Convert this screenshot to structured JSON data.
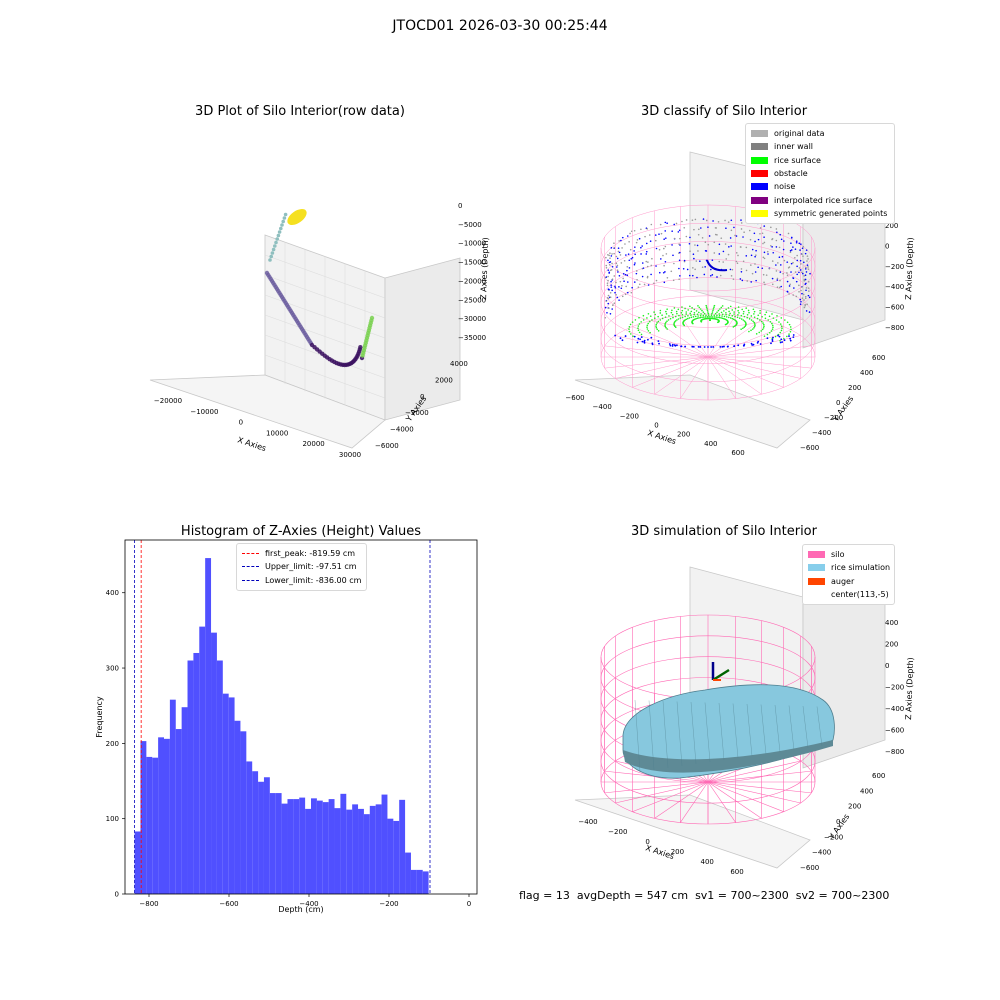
{
  "figure": {
    "suptitle": "JTOCD01 2026-03-30 00:25:44",
    "footer": {
      "flag": "flag = 13",
      "avg_depth": "avgDepth = 547 cm",
      "sv1": "sv1 = 700~2300",
      "sv2": "sv2 = 700~2300"
    }
  },
  "panel1": {
    "title": "3D Plot of Silo Interior(row data)",
    "xlabel": "X Axies",
    "ylabel": "Y Axies",
    "zlabel": "Z Axies (Depth)",
    "xticks": [
      "−20000",
      "−10000",
      "0",
      "10000",
      "20000",
      "30000"
    ],
    "yticks": [
      "4000",
      "2000",
      "0",
      "−2000",
      "−4000",
      "−6000"
    ],
    "zticks": [
      "0",
      "−5000",
      "−10000",
      "−15000",
      "−20000",
      "−25000",
      "−30000",
      "−35000"
    ]
  },
  "panel2": {
    "title": "3D classify of Silo Interior",
    "xlabel": "X Axies",
    "ylabel": "Y Axies",
    "zlabel": "Z Axies (Depth)",
    "xticks": [
      "−600",
      "−400",
      "−200",
      "0",
      "200",
      "400",
      "600"
    ],
    "yticks": [
      "600",
      "400",
      "200",
      "0",
      "−200",
      "−400",
      "−600"
    ],
    "zticks": [
      "200",
      "0",
      "−200",
      "−400",
      "−600",
      "−800"
    ],
    "legend": [
      {
        "label": "original data",
        "color": "#b0b0b0"
      },
      {
        "label": "inner wall",
        "color": "#808080"
      },
      {
        "label": "rice surface",
        "color": "#00ff00"
      },
      {
        "label": "obstacle",
        "color": "#ff0000"
      },
      {
        "label": "noise",
        "color": "#0000ff"
      },
      {
        "label": "interpolated rice surface",
        "color": "#800080"
      },
      {
        "label": "symmetric generated points",
        "color": "#ffff00"
      }
    ]
  },
  "panel3": {
    "title": "Histogram of Z-Axies (Height) Values",
    "legend": [
      {
        "label": "first_peak: -819.59 cm",
        "color": "#ff0000"
      },
      {
        "label": "Upper_limit: -97.51 cm",
        "color": "#0000bb"
      },
      {
        "label": "Lower_limit: -836.00 cm",
        "color": "#0000bb"
      }
    ]
  },
  "panel4": {
    "title": "3D simulation of Silo Interior",
    "xlabel": "X Axies",
    "ylabel": "Y Axies",
    "zlabel": "Z Axies (Depth)",
    "xticks": [
      "−400",
      "−200",
      "0",
      "200",
      "400",
      "600"
    ],
    "yticks": [
      "600",
      "400",
      "200",
      "0",
      "−200",
      "−400",
      "−600"
    ],
    "zticks": [
      "400",
      "200",
      "0",
      "−200",
      "−400",
      "−600",
      "−800"
    ],
    "legend": [
      {
        "label": "silo",
        "color": "#ff69b4"
      },
      {
        "label": "rice simulation",
        "color": "#87ceeb"
      },
      {
        "label": "auger",
        "color": "#ff4500"
      },
      {
        "label": "center(113,-5)",
        "color": ""
      }
    ]
  },
  "chart_data": {
    "type": "bar",
    "title": "Histogram of Z-Axies (Height) Values",
    "xlabel": "Depth (cm)",
    "ylabel": "Frequency",
    "xlim": [
      -860,
      20
    ],
    "ylim": [
      0,
      470
    ],
    "xticks": [
      -800,
      -600,
      -400,
      -200,
      0
    ],
    "yticks": [
      0,
      100,
      200,
      300,
      400
    ],
    "bin_width": 14.7,
    "bin_start": -836.0,
    "values": [
      83,
      203,
      182,
      181,
      208,
      206,
      258,
      219,
      248,
      310,
      320,
      355,
      446,
      347,
      310,
      266,
      261,
      230,
      216,
      176,
      163,
      149,
      155,
      134,
      134,
      120,
      126,
      126,
      128,
      113,
      127,
      124,
      122,
      126,
      114,
      133,
      112,
      119,
      113,
      106,
      117,
      119,
      132,
      100,
      97,
      125,
      55,
      32,
      32,
      30
    ],
    "vlines": [
      {
        "name": "first_peak: -819.59 cm",
        "x": -819.59,
        "color": "#ff0000"
      },
      {
        "name": "Upper_limit: -97.51 cm",
        "x": -97.51,
        "color": "#0000bb"
      },
      {
        "name": "Lower_limit: -836.00 cm",
        "x": -836.0,
        "color": "#0000bb"
      }
    ],
    "grid": false,
    "legend": "top-center",
    "bar_color": "#4d4dff"
  }
}
